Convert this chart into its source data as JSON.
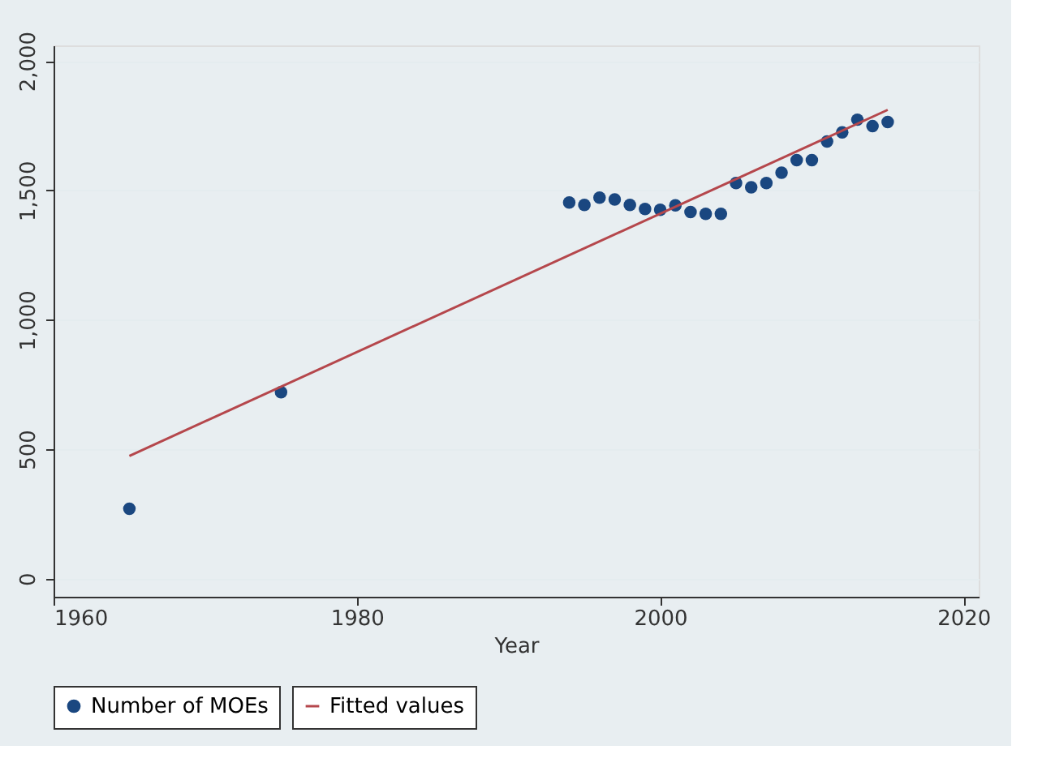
{
  "chart_data": {
    "type": "scatter",
    "xlabel": "Year",
    "xlim": [
      1960,
      2021
    ],
    "ylim": [
      -70,
      2060
    ],
    "xticks": [
      1960,
      1980,
      2000,
      2020
    ],
    "yticks": [
      0,
      500,
      {
        "value": 1000,
        "label": "1,000"
      },
      {
        "value": 1500,
        "label": "1,500"
      },
      {
        "value": 2000,
        "label": "2,000"
      }
    ],
    "grid": "y",
    "legend": "bottom",
    "series": [
      {
        "name": "Number of MOEs",
        "marker": "circle",
        "color": "#1a4780",
        "x": [
          1965,
          1975,
          1994,
          1995,
          1996,
          1997,
          1998,
          1999,
          2000,
          2001,
          2002,
          2003,
          2004,
          2005,
          2006,
          2007,
          2008,
          2009,
          2010,
          2011,
          2012,
          2013,
          2014,
          2015
        ],
        "values": [
          270,
          720,
          1453,
          1444,
          1472,
          1465,
          1444,
          1428,
          1425,
          1442,
          1416,
          1409,
          1409,
          1528,
          1512,
          1528,
          1568,
          1617,
          1617,
          1689,
          1724,
          1773,
          1748,
          1764
        ]
      },
      {
        "name": "Fitted values",
        "type": "line",
        "marker": "none",
        "color": "#b5474c",
        "x": [
          1965,
          2015
        ],
        "values": [
          474,
          1811
        ]
      }
    ]
  }
}
